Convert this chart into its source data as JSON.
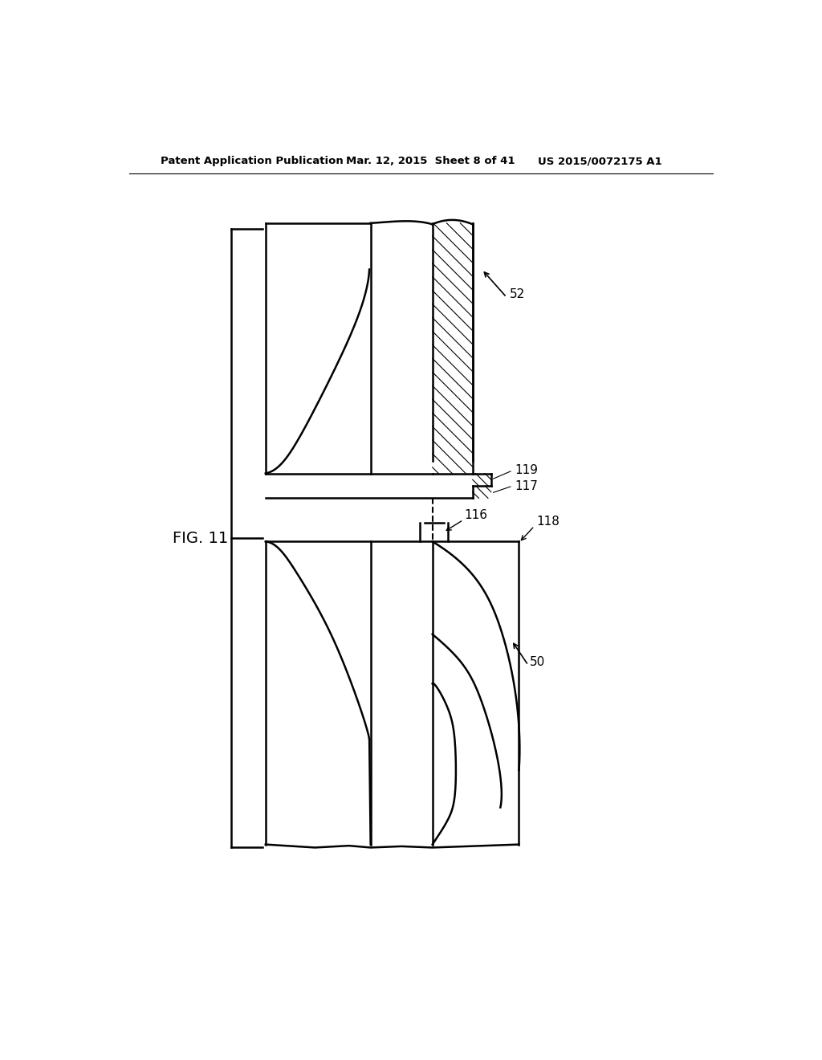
{
  "background_color": "#ffffff",
  "line_color": "#000000",
  "header_left": "Patent Application Publication",
  "header_mid": "Mar. 12, 2015  Sheet 8 of 41",
  "header_right": "US 2015/0072175 A1",
  "fig_label": "FIG. 11"
}
